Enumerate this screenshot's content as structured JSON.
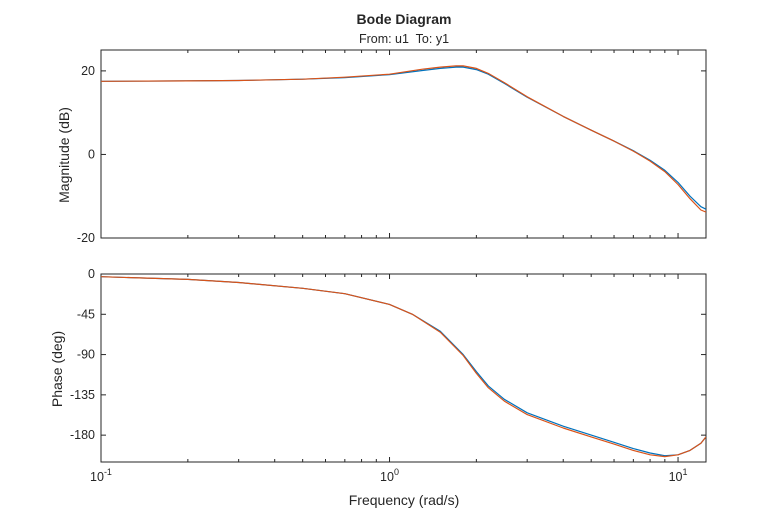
{
  "chart_data": {
    "type": "line",
    "title": "Bode Diagram",
    "subtitle": "From: u1  To: y1",
    "xlabel": "Frequency (rad/s)",
    "xscale": "log",
    "xlim": [
      0.1,
      12.5
    ],
    "x_ticks": [
      {
        "value": 0.1,
        "base": "10",
        "exp": "-1"
      },
      {
        "value": 1,
        "base": "10",
        "exp": "0"
      },
      {
        "value": 10,
        "base": "10",
        "exp": "1"
      }
    ],
    "grid": false,
    "legend": "none",
    "colors": {
      "series1": "#0072BD",
      "series2": "#D95319",
      "axes": "#262626"
    },
    "panels": [
      {
        "name": "magnitude",
        "ylabel": "Magnitude (dB)",
        "ylim": [
          -20,
          25
        ],
        "y_ticks": [
          {
            "value": 20,
            "label": "20"
          },
          {
            "value": 0,
            "label": "0"
          },
          {
            "value": -20,
            "label": "-20"
          }
        ],
        "series": [
          {
            "x": [
              0.1,
              0.2,
              0.3,
              0.5,
              0.7,
              1.0,
              1.3,
              1.5,
              1.7,
              1.8,
              2.0,
              2.2,
              2.5,
              3.0,
              4.0,
              5.0,
              6.0,
              7.0,
              8.0,
              9.0,
              10.0,
              11.0,
              12.0,
              12.5
            ],
            "y": [
              17.5,
              17.6,
              17.7,
              18.0,
              18.4,
              19.1,
              20.1,
              20.6,
              20.9,
              20.9,
              20.3,
              19.2,
              17.0,
              13.7,
              9.1,
              5.8,
              3.2,
              0.9,
              -1.4,
              -3.8,
              -6.7,
              -10.0,
              -12.5,
              -13.1
            ]
          },
          {
            "x": [
              0.1,
              0.2,
              0.3,
              0.5,
              0.7,
              1.0,
              1.3,
              1.5,
              1.7,
              1.8,
              2.0,
              2.2,
              2.5,
              3.0,
              4.0,
              5.0,
              6.0,
              7.0,
              8.0,
              9.0,
              10.0,
              11.0,
              12.0,
              12.5
            ],
            "y": [
              17.5,
              17.6,
              17.7,
              18.0,
              18.5,
              19.2,
              20.4,
              20.9,
              21.2,
              21.2,
              20.6,
              19.4,
              17.2,
              13.8,
              9.1,
              5.8,
              3.2,
              0.8,
              -1.6,
              -4.1,
              -7.2,
              -10.6,
              -13.3,
              -13.8
            ]
          }
        ]
      },
      {
        "name": "phase",
        "ylabel": "Phase (deg)",
        "ylim": [
          -210,
          0
        ],
        "y_ticks": [
          {
            "value": 0,
            "label": "0"
          },
          {
            "value": -45,
            "label": "-45"
          },
          {
            "value": -90,
            "label": "-90"
          },
          {
            "value": -135,
            "label": "-135"
          },
          {
            "value": -180,
            "label": "-180"
          }
        ],
        "series": [
          {
            "x": [
              0.1,
              0.2,
              0.3,
              0.5,
              0.7,
              1.0,
              1.2,
              1.5,
              1.8,
              2.0,
              2.2,
              2.5,
              3.0,
              4.0,
              5.0,
              6.0,
              7.0,
              8.0,
              9.0,
              10.0,
              11.0,
              12.0,
              12.5
            ],
            "y": [
              -3,
              -6,
              -9.5,
              -16,
              -22,
              -34,
              -45,
              -64,
              -90,
              -109,
              -125,
              -140,
              -155,
              -170,
              -180,
              -188,
              -195,
              -200,
              -203,
              -202,
              -197,
              -189,
              -182
            ]
          },
          {
            "x": [
              0.1,
              0.2,
              0.3,
              0.5,
              0.7,
              1.0,
              1.2,
              1.5,
              1.8,
              2.0,
              2.2,
              2.5,
              3.0,
              4.0,
              5.0,
              6.0,
              7.0,
              8.0,
              9.0,
              10.0,
              11.0,
              12.0,
              12.5
            ],
            "y": [
              -3,
              -6,
              -9.5,
              -16,
              -22,
              -34,
              -45,
              -65,
              -91,
              -111,
              -127,
              -142,
              -157,
              -172,
              -182,
              -190,
              -197,
              -202,
              -204,
              -202,
              -197,
              -189,
              -182
            ]
          }
        ]
      }
    ]
  }
}
